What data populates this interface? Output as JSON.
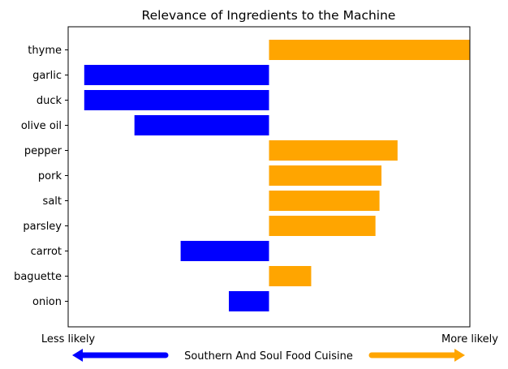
{
  "chart_data": {
    "type": "bar",
    "orientation": "horizontal",
    "title": "Relevance of Ingredients to the Machine",
    "categories": [
      "thyme",
      "garlic",
      "duck",
      "olive oil",
      "pepper",
      "pork",
      "salt",
      "parsley",
      "carrot",
      "baguette",
      "onion"
    ],
    "values": [
      1.0,
      -0.92,
      -0.92,
      -0.67,
      0.64,
      0.56,
      0.55,
      0.53,
      -0.44,
      0.21,
      -0.2
    ],
    "xlim": [
      -1,
      1
    ],
    "ylabel": "",
    "x_left_label": "Less likely",
    "x_right_label": "More likely",
    "legend_label": "Southern And Soul Food Cuisine",
    "grid": false,
    "colors": {
      "negative": "#0000ff",
      "positive": "#ffa500",
      "text": "#000000",
      "axes": "#000000"
    }
  }
}
